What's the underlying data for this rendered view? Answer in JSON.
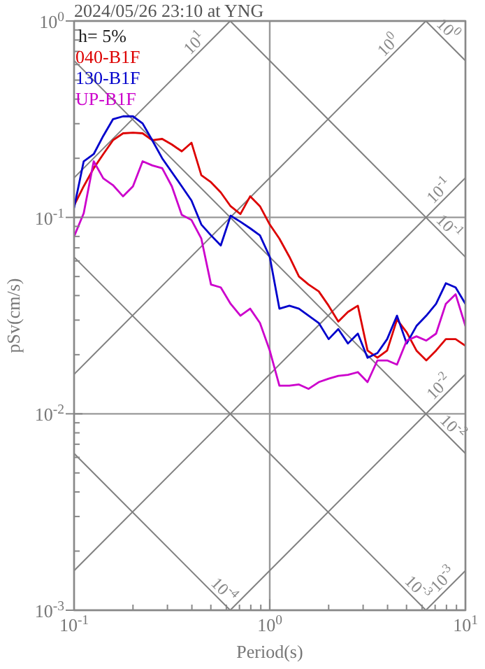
{
  "chart_data": {
    "type": "line",
    "title": "2024/05/26 23:10 at YNG",
    "xlabel": "Period(s)",
    "ylabel": "pSv(cm/s)",
    "log": "xy",
    "grid": true,
    "legend": "top left",
    "line_style": "solid",
    "marker": "none",
    "xlim": [
      0.1,
      10
    ],
    "ylim": [
      0.001,
      1
    ],
    "xticks": [
      {
        "value": 0.1,
        "label": "10$^{-1}$"
      },
      {
        "value": 0.2,
        "label": null
      },
      {
        "value": 0.3,
        "label": null
      },
      {
        "value": 0.4,
        "label": null
      },
      {
        "value": 0.5,
        "label": null
      },
      {
        "value": 0.6,
        "label": null
      },
      {
        "value": 0.7,
        "label": null
      },
      {
        "value": 0.8,
        "label": null
      },
      {
        "value": 0.9,
        "label": null
      },
      {
        "value": 1,
        "label": "10$^{0}$"
      },
      {
        "value": 2,
        "label": null
      },
      {
        "value": 3,
        "label": null
      },
      {
        "value": 4,
        "label": null
      },
      {
        "value": 5,
        "label": null
      },
      {
        "value": 6,
        "label": null
      },
      {
        "value": 7,
        "label": null
      },
      {
        "value": 8,
        "label": null
      },
      {
        "value": 9,
        "label": null
      },
      {
        "value": 10,
        "label": "10$^{1}$"
      }
    ],
    "yticks": [
      {
        "value": 0.001,
        "label": "10$^{-3}$"
      },
      {
        "value": 0.002,
        "label": null
      },
      {
        "value": 0.003,
        "label": null
      },
      {
        "value": 0.004,
        "label": null
      },
      {
        "value": 0.005,
        "label": null
      },
      {
        "value": 0.006,
        "label": null
      },
      {
        "value": 0.007,
        "label": null
      },
      {
        "value": 0.008,
        "label": null
      },
      {
        "value": 0.009,
        "label": null
      },
      {
        "value": 0.01,
        "label": "10$^{-2}$"
      },
      {
        "value": 0.02,
        "label": null
      },
      {
        "value": 0.03,
        "label": null
      },
      {
        "value": 0.04,
        "label": null
      },
      {
        "value": 0.05,
        "label": null
      },
      {
        "value": 0.06,
        "label": null
      },
      {
        "value": 0.07,
        "label": null
      },
      {
        "value": 0.08,
        "label": null
      },
      {
        "value": 0.09,
        "label": null
      },
      {
        "value": 0.1,
        "label": "10$^{-1}$"
      },
      {
        "value": 0.2,
        "label": null
      },
      {
        "value": 0.3,
        "label": null
      },
      {
        "value": 0.4,
        "label": null
      },
      {
        "value": 0.5,
        "label": null
      },
      {
        "value": 0.6,
        "label": null
      },
      {
        "value": 0.7,
        "label": null
      },
      {
        "value": 0.8,
        "label": null
      },
      {
        "value": 0.9,
        "label": null
      },
      {
        "value": 1,
        "label": "10$^{0}$"
      }
    ],
    "x": [
      0.1,
      0.112,
      0.126,
      0.141,
      0.158,
      0.178,
      0.2,
      0.224,
      0.251,
      0.282,
      0.316,
      0.355,
      0.398,
      0.447,
      0.501,
      0.562,
      0.631,
      0.708,
      0.794,
      0.891,
      1,
      1.12,
      1.26,
      1.41,
      1.58,
      1.78,
      2,
      2.24,
      2.51,
      2.82,
      3.16,
      3.55,
      3.98,
      4.47,
      5.01,
      5.62,
      6.31,
      7.08,
      7.94,
      8.91,
      10
    ],
    "series": [
      {
        "name": "040-B1F",
        "color": "#dd0000",
        "values": [
          0.115,
          0.144,
          0.178,
          0.21,
          0.247,
          0.268,
          0.27,
          0.268,
          0.247,
          0.251,
          0.235,
          0.217,
          0.24,
          0.164,
          0.151,
          0.134,
          0.114,
          0.104,
          0.128,
          0.114,
          0.092,
          0.078,
          0.063,
          0.05,
          0.0455,
          0.042,
          0.0355,
          0.0295,
          0.033,
          0.0355,
          0.021,
          0.0193,
          0.021,
          0.0302,
          0.026,
          0.021,
          0.0187,
          0.021,
          0.024,
          0.024,
          0.0222
        ]
      },
      {
        "name": "130-B1F",
        "color": "#0000cc",
        "values": [
          0.112,
          0.193,
          0.21,
          0.26,
          0.316,
          0.327,
          0.327,
          0.301,
          0.247,
          0.2,
          0.17,
          0.144,
          0.122,
          0.092,
          0.081,
          0.072,
          0.102,
          0.095,
          0.088,
          0.081,
          0.063,
          0.0343,
          0.0355,
          0.0343,
          0.0316,
          0.029,
          0.024,
          0.027,
          0.0228,
          0.0256,
          0.0193,
          0.0204,
          0.024,
          0.0316,
          0.0228,
          0.028,
          0.0316,
          0.0363,
          0.0462,
          0.044,
          0.0363
        ]
      },
      {
        "name": "UP-B1F",
        "color": "#cc00cc",
        "values": [
          0.08,
          0.105,
          0.193,
          0.158,
          0.146,
          0.128,
          0.144,
          0.193,
          0.184,
          0.178,
          0.144,
          0.103,
          0.097,
          0.078,
          0.0455,
          0.044,
          0.0363,
          0.0316,
          0.0343,
          0.029,
          0.021,
          0.0139,
          0.0139,
          0.0141,
          0.0134,
          0.0145,
          0.0151,
          0.0156,
          0.0158,
          0.0163,
          0.0145,
          0.0187,
          0.0187,
          0.0178,
          0.0236,
          0.0248,
          0.0236,
          0.0256,
          0.0363,
          0.0406,
          0.028
        ]
      },
      {
        "type": "line",
        "color": "#808080",
        "x": [
          0.1,
          0.628
        ],
        "values": [
          0.159,
          1
        ]
      },
      {
        "type": "line",
        "color": "#808080",
        "x": [
          0.1,
          6.28
        ],
        "values": [
          0.0159,
          1
        ]
      },
      {
        "type": "line",
        "color": "#808080",
        "x": [
          0.1,
          10
        ],
        "values": [
          0.00159,
          0.159
        ]
      },
      {
        "type": "line",
        "color": "#808080",
        "x": [
          0.628,
          10
        ],
        "values": [
          0.001,
          0.0159
        ]
      },
      {
        "type": "line",
        "color": "#808080",
        "x": [
          6.28,
          10
        ],
        "values": [
          0.001,
          0.00159
        ]
      },
      {
        "type": "line",
        "color": "#808080",
        "x": [
          6.28,
          10
        ],
        "values": [
          1,
          0.628
        ]
      },
      {
        "type": "line",
        "color": "#808080",
        "x": [
          0.628,
          10
        ],
        "values": [
          1,
          0.0628
        ]
      },
      {
        "type": "line",
        "color": "#808080",
        "x": [
          0.1,
          10
        ],
        "values": [
          0.628,
          0.00628
        ]
      },
      {
        "type": "line",
        "color": "#808080",
        "x": [
          0.1,
          6.28
        ],
        "values": [
          0.0628,
          0.001
        ]
      },
      {
        "type": "line",
        "color": "#808080",
        "x": [
          0.1,
          0.628
        ],
        "values": [
          0.00628,
          0.001
        ]
      }
    ],
    "annotations": [
      "h= 5%",
      {
        "text": "10$^{1}$",
        "x": 0.447,
        "y": 0.711
      },
      {
        "text": "10$^{0}$",
        "x": 4.37,
        "y": 0.695
      },
      {
        "text": "10$^{-1}$",
        "x": 7.94,
        "y": 0.126
      },
      {
        "text": "10$^{-2}$",
        "x": 7.94,
        "y": 0.01265
      },
      {
        "text": "10$^{-3}$",
        "x": 8.32,
        "y": 0.001324
      },
      {
        "text": "10$^{0}$",
        "x": 7.5,
        "y": 0.838
      },
      {
        "text": "10$^{-1}$",
        "x": 7.59,
        "y": 0.0828
      },
      {
        "text": "10$^{-2}$",
        "x": 7.94,
        "y": 0.0079
      },
      {
        "text": "10$^{-3}$",
        "x": 5.25,
        "y": 0.0012
      },
      {
        "text": "10$^{-4}$",
        "x": 0.537,
        "y": 0.00117
      }
    ]
  }
}
